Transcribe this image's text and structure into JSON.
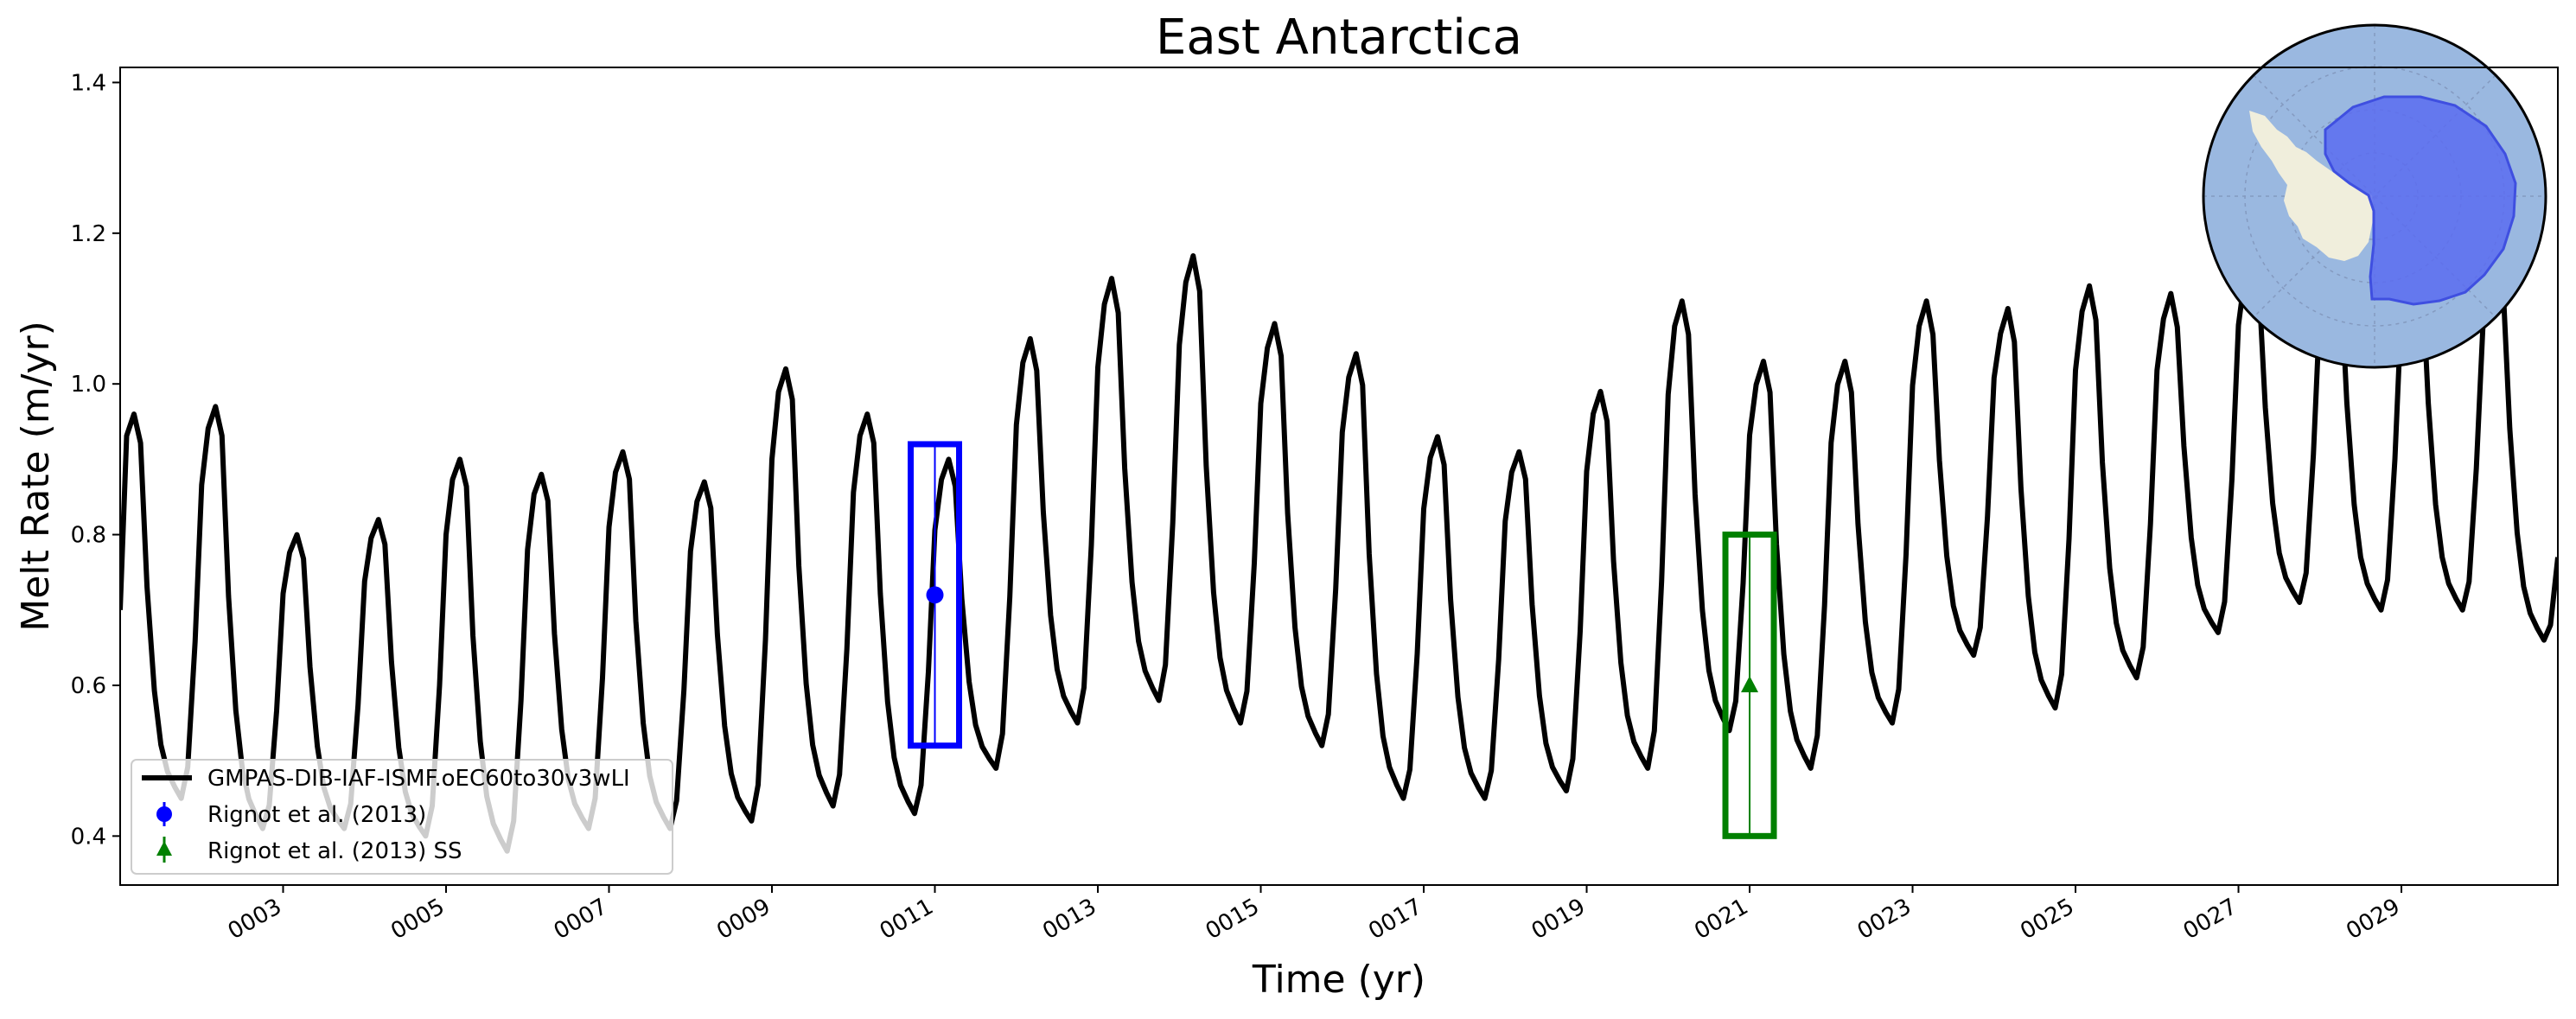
{
  "chart_data": {
    "type": "line",
    "title": "East Antarctica",
    "xlabel": "Time (yr)",
    "ylabel": "Melt Rate (m/yr)",
    "xlim": [
      1,
      30.92
    ],
    "ylim": [
      0.335,
      1.42
    ],
    "yticks": [
      0.4,
      0.6,
      0.8,
      1.0,
      1.2,
      1.4
    ],
    "ytick_labels": [
      "0.4",
      "0.6",
      "0.8",
      "1.0",
      "1.2",
      "1.4"
    ],
    "xticks": [
      3,
      5,
      7,
      9,
      11,
      13,
      15,
      17,
      19,
      21,
      23,
      25,
      27,
      29
    ],
    "xtick_labels": [
      "0003",
      "0005",
      "0007",
      "0009",
      "0011",
      "0013",
      "0015",
      "0017",
      "0019",
      "0021",
      "0023",
      "0025",
      "0027",
      "0029"
    ],
    "grid": false,
    "legend_position": "lower-left",
    "colors": {
      "series": "#000000",
      "rignot": "#0000ff",
      "rignot_ss": "#008000",
      "inset_ocean": "#9ab8e0",
      "inset_land": "#f0eedc",
      "inset_region": "#5a6cf0"
    },
    "series": [
      {
        "name": "GMPAS-DIB-IAF-ISMF.oEC60to30v3wLI",
        "annual": [
          {
            "year": 1,
            "peak": 0.96,
            "trough": 0.45,
            "start": 0.7
          },
          {
            "year": 2,
            "peak": 0.97,
            "trough": 0.41
          },
          {
            "year": 3,
            "peak": 0.8,
            "trough": 0.41
          },
          {
            "year": 4,
            "peak": 0.82,
            "trough": 0.4
          },
          {
            "year": 5,
            "peak": 0.9,
            "trough": 0.38
          },
          {
            "year": 6,
            "peak": 0.88,
            "trough": 0.41
          },
          {
            "year": 7,
            "peak": 0.91,
            "trough": 0.41
          },
          {
            "year": 8,
            "peak": 0.87,
            "trough": 0.42
          },
          {
            "year": 9,
            "peak": 1.02,
            "trough": 0.44
          },
          {
            "year": 10,
            "peak": 0.96,
            "trough": 0.43
          },
          {
            "year": 11,
            "peak": 0.9,
            "trough": 0.49
          },
          {
            "year": 12,
            "peak": 1.06,
            "trough": 0.55
          },
          {
            "year": 13,
            "peak": 1.14,
            "trough": 0.58
          },
          {
            "year": 14,
            "peak": 1.17,
            "trough": 0.55
          },
          {
            "year": 15,
            "peak": 1.08,
            "trough": 0.52
          },
          {
            "year": 16,
            "peak": 1.04,
            "trough": 0.45
          },
          {
            "year": 17,
            "peak": 0.93,
            "trough": 0.45
          },
          {
            "year": 18,
            "peak": 0.91,
            "trough": 0.46
          },
          {
            "year": 19,
            "peak": 0.99,
            "trough": 0.49
          },
          {
            "year": 20,
            "peak": 1.11,
            "trough": 0.54
          },
          {
            "year": 21,
            "peak": 1.03,
            "trough": 0.49
          },
          {
            "year": 22,
            "peak": 1.03,
            "trough": 0.55
          },
          {
            "year": 23,
            "peak": 1.11,
            "trough": 0.64
          },
          {
            "year": 24,
            "peak": 1.1,
            "trough": 0.57
          },
          {
            "year": 25,
            "peak": 1.13,
            "trough": 0.61
          },
          {
            "year": 26,
            "peak": 1.12,
            "trough": 0.67
          },
          {
            "year": 27,
            "peak": 1.18,
            "trough": 0.71
          },
          {
            "year": 28,
            "peak": 1.2,
            "trough": 0.7
          },
          {
            "year": 29,
            "peak": 1.2,
            "trough": 0.7
          },
          {
            "year": 30,
            "peak": 1.17,
            "trough": 0.66,
            "end": 0.77
          }
        ]
      }
    ],
    "observations": [
      {
        "name": "Rignot et al. (2013)",
        "x": 11,
        "y": 0.72,
        "ymin": 0.52,
        "ymax": 0.92,
        "marker": "circle",
        "color": "#0000ff"
      },
      {
        "name": "Rignot et al. (2013) SS",
        "x": 21,
        "y": 0.6,
        "ymin": 0.4,
        "ymax": 0.8,
        "marker": "triangle",
        "color": "#008000"
      }
    ],
    "legend": [
      {
        "label": "GMPAS-DIB-IAF-ISMF.oEC60to30v3wLI",
        "marker": "line",
        "color": "#000000"
      },
      {
        "label": "Rignot et al. (2013)",
        "marker": "circle",
        "color": "#0000ff"
      },
      {
        "label": "Rignot et al. (2013) SS",
        "marker": "triangle",
        "color": "#008000"
      }
    ],
    "inset": {
      "type": "map",
      "region": "East Antarctica",
      "position": "top-right"
    }
  }
}
